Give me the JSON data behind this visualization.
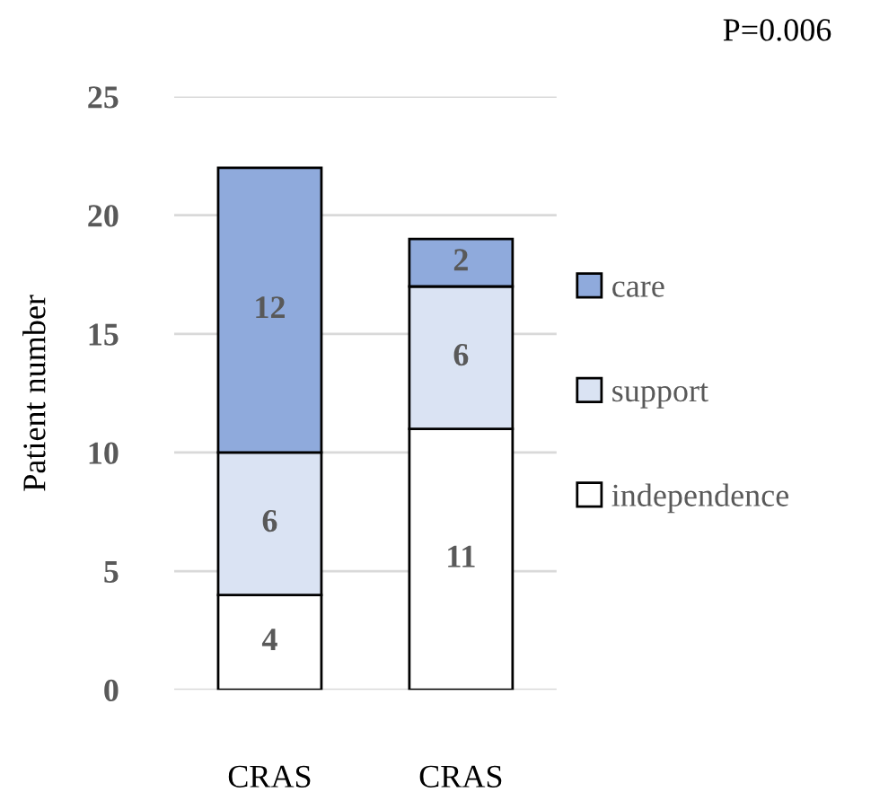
{
  "chart_data": {
    "type": "bar",
    "stacked": true,
    "ylabel": "Patient number",
    "categories": [
      "CRAS",
      "CRAS"
    ],
    "series": [
      {
        "name": "independence",
        "color": "#ffffff",
        "values": [
          4,
          11
        ]
      },
      {
        "name": "support",
        "color": "#dae3f3",
        "values": [
          6,
          6
        ]
      },
      {
        "name": "care",
        "color": "#8faadc",
        "values": [
          12,
          2
        ]
      }
    ],
    "ylim": [
      0,
      25
    ],
    "yticks": [
      0,
      5,
      10,
      15,
      20,
      25
    ],
    "grid": "y",
    "legend": "right",
    "data_labels": true,
    "annotations": [
      "P=0.006"
    ]
  }
}
